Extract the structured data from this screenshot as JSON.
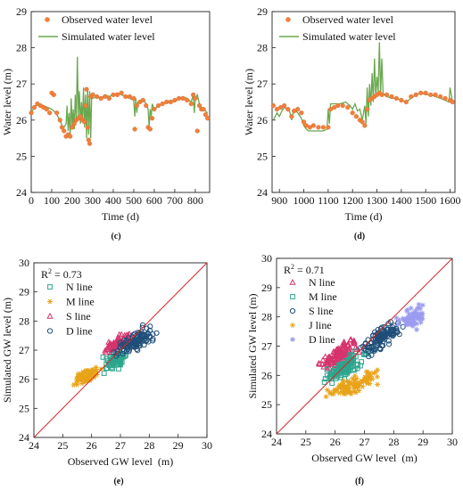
{
  "chart_data": [
    {
      "type": "line",
      "panel_label": "(c)",
      "xlabel": "Time (d)",
      "ylabel": "Water level (m)",
      "xlim": [
        0,
        870
      ],
      "ylim": [
        24,
        29
      ],
      "x_ticks": [
        0,
        100,
        200,
        300,
        400,
        500,
        600,
        700,
        800
      ],
      "y_ticks": [
        24,
        25,
        26,
        27,
        28,
        29
      ],
      "grid": false,
      "legend_position": "top-left",
      "series": [
        {
          "name": "Observed water level",
          "style": "markers",
          "color": "#f07f3c",
          "x": [
            0,
            15,
            30,
            45,
            60,
            75,
            90,
            100,
            110,
            125,
            140,
            150,
            160,
            170,
            180,
            190,
            200,
            210,
            220,
            230,
            240,
            250,
            260,
            265,
            270,
            275,
            280,
            285,
            290,
            300,
            320,
            340,
            360,
            380,
            400,
            420,
            440,
            460,
            480,
            500,
            505,
            515,
            530,
            545,
            560,
            570,
            580,
            590,
            600,
            620,
            640,
            660,
            680,
            700,
            720,
            740,
            760,
            780,
            790,
            800,
            810,
            820,
            830,
            840,
            850,
            860
          ],
          "y": [
            26.2,
            26.35,
            26.45,
            26.4,
            26.35,
            26.3,
            26.2,
            26.75,
            26.7,
            26.2,
            26.0,
            25.8,
            25.7,
            25.55,
            25.6,
            25.55,
            25.8,
            25.9,
            26.0,
            26.05,
            26.1,
            26.0,
            25.95,
            26.4,
            26.85,
            25.8,
            25.45,
            25.35,
            26.65,
            26.7,
            26.65,
            26.6,
            26.65,
            26.6,
            26.7,
            26.7,
            26.75,
            26.65,
            26.65,
            26.6,
            25.75,
            26.4,
            26.5,
            26.55,
            26.4,
            25.8,
            25.75,
            26.05,
            26.3,
            26.4,
            26.45,
            26.5,
            26.5,
            26.55,
            26.6,
            26.6,
            26.55,
            26.45,
            26.7,
            26.6,
            25.7,
            26.4,
            26.3,
            26.3,
            26.15,
            26.05
          ]
        },
        {
          "name": "Simulated water level",
          "style": "line",
          "color": "#6aa84f",
          "x": [
            0,
            20,
            40,
            60,
            80,
            100,
            110,
            120,
            130,
            140,
            150,
            160,
            170,
            175,
            180,
            185,
            190,
            195,
            200,
            205,
            210,
            215,
            220,
            225,
            230,
            235,
            240,
            245,
            250,
            255,
            260,
            265,
            270,
            275,
            280,
            285,
            290,
            295,
            300,
            320,
            340,
            360,
            380,
            400,
            420,
            440,
            460,
            480,
            500,
            505,
            510,
            515,
            520,
            530,
            540,
            550,
            560,
            570,
            575,
            580,
            585,
            590,
            600,
            620,
            640,
            660,
            680,
            700,
            720,
            740,
            760,
            780,
            790,
            795,
            800,
            810,
            820,
            830,
            840,
            850,
            860
          ],
          "y": [
            26.2,
            26.4,
            26.45,
            26.4,
            26.35,
            26.3,
            26.25,
            26.2,
            26.1,
            26.0,
            25.85,
            25.8,
            25.9,
            26.4,
            25.7,
            26.2,
            25.6,
            26.6,
            25.8,
            26.3,
            25.75,
            26.7,
            26.0,
            27.75,
            26.1,
            26.8,
            25.9,
            26.5,
            25.95,
            26.9,
            25.8,
            26.7,
            25.5,
            26.9,
            25.6,
            26.8,
            25.5,
            26.7,
            26.6,
            26.65,
            26.6,
            26.7,
            26.65,
            26.7,
            26.75,
            26.7,
            26.65,
            26.6,
            26.55,
            26.1,
            26.6,
            26.2,
            26.5,
            26.55,
            26.5,
            26.55,
            26.45,
            26.3,
            25.8,
            26.3,
            26.1,
            26.45,
            26.3,
            26.4,
            26.45,
            26.5,
            26.55,
            26.5,
            26.6,
            26.65,
            26.6,
            26.5,
            26.7,
            26.2,
            26.6,
            26.7,
            26.45,
            26.35,
            26.3,
            26.25,
            26.2
          ]
        }
      ]
    },
    {
      "type": "line",
      "panel_label": "(d)",
      "xlabel": "Time (d)",
      "ylabel": "Water level (m)",
      "xlim": [
        870,
        1620
      ],
      "ylim": [
        24,
        29
      ],
      "x_ticks": [
        900,
        1000,
        1100,
        1200,
        1300,
        1400,
        1500,
        1600
      ],
      "y_ticks": [
        24,
        25,
        26,
        27,
        28,
        29
      ],
      "grid": false,
      "legend_position": "top-left",
      "series": [
        {
          "name": "Observed water level",
          "style": "markers",
          "color": "#f07f3c",
          "x": [
            875,
            890,
            905,
            920,
            935,
            950,
            960,
            975,
            990,
            1000,
            1010,
            1025,
            1040,
            1060,
            1080,
            1100,
            1110,
            1125,
            1140,
            1160,
            1180,
            1200,
            1215,
            1230,
            1240,
            1250,
            1260,
            1270,
            1280,
            1290,
            1300,
            1310,
            1320,
            1340,
            1360,
            1380,
            1400,
            1420,
            1440,
            1460,
            1480,
            1500,
            1520,
            1540,
            1560,
            1580,
            1600,
            1610
          ],
          "y": [
            26.4,
            26.3,
            26.35,
            26.4,
            26.3,
            26.1,
            26.25,
            26.3,
            26.2,
            25.95,
            25.85,
            25.8,
            25.85,
            25.8,
            25.8,
            25.8,
            26.3,
            26.35,
            26.4,
            26.4,
            26.35,
            26.2,
            26.1,
            26.0,
            25.95,
            25.85,
            26.3,
            26.55,
            26.6,
            26.65,
            26.7,
            26.75,
            26.7,
            26.7,
            26.65,
            26.6,
            26.55,
            26.5,
            26.65,
            26.7,
            26.75,
            26.75,
            26.7,
            26.7,
            26.65,
            26.6,
            26.55,
            26.5
          ]
        },
        {
          "name": "Simulated water level",
          "style": "line",
          "color": "#6aa84f",
          "x": [
            875,
            890,
            900,
            910,
            920,
            940,
            950,
            960,
            975,
            990,
            1000,
            1010,
            1020,
            1040,
            1060,
            1080,
            1095,
            1100,
            1105,
            1110,
            1130,
            1150,
            1170,
            1190,
            1200,
            1210,
            1220,
            1230,
            1240,
            1250,
            1255,
            1260,
            1265,
            1270,
            1275,
            1280,
            1285,
            1290,
            1295,
            1300,
            1305,
            1310,
            1315,
            1320,
            1325,
            1330,
            1340,
            1360,
            1380,
            1400,
            1420,
            1440,
            1460,
            1480,
            1500,
            1520,
            1540,
            1560,
            1580,
            1595,
            1600,
            1610
          ],
          "y": [
            26.0,
            26.2,
            26.1,
            26.25,
            26.35,
            26.3,
            26.0,
            26.3,
            26.2,
            26.05,
            25.85,
            25.75,
            25.7,
            25.7,
            25.7,
            25.7,
            25.75,
            26.3,
            25.9,
            26.45,
            26.45,
            26.45,
            26.5,
            26.4,
            26.3,
            26.45,
            26.25,
            26.3,
            26.0,
            26.4,
            25.9,
            26.9,
            26.1,
            27.0,
            26.4,
            27.3,
            26.5,
            27.7,
            26.6,
            27.2,
            26.8,
            28.15,
            26.7,
            27.7,
            26.75,
            26.7,
            26.65,
            26.6,
            26.6,
            26.55,
            26.5,
            26.6,
            26.7,
            26.75,
            26.7,
            26.7,
            26.65,
            26.6,
            26.55,
            26.5,
            26.9,
            26.5
          ]
        }
      ]
    },
    {
      "type": "scatter",
      "panel_label": "(e)",
      "xlabel": "Observed GW level",
      "xlabel_unit": "(m)",
      "ylabel": "Simulated GW level (m)",
      "xlim": [
        24,
        30
      ],
      "ylim": [
        24,
        30
      ],
      "x_ticks": [
        24,
        25,
        26,
        27,
        28,
        29,
        30
      ],
      "y_ticks": [
        24,
        25,
        26,
        27,
        28,
        29,
        30
      ],
      "annotation": "R",
      "annotation_sup": "2",
      "annotation_value": " = 0.73",
      "reference_line": {
        "from": [
          24,
          24
        ],
        "to": [
          30,
          30
        ],
        "color": "#d62728"
      },
      "legend_position": "top-left",
      "series": [
        {
          "name": "N line",
          "marker": "square",
          "color": "#2ca58d",
          "center": [
            26.8,
            26.7
          ],
          "spread": [
            0.55,
            0.45
          ],
          "slope": 0.55,
          "count": 70
        },
        {
          "name": "M line",
          "marker": "asterisk",
          "color": "#e8a317",
          "center": [
            25.8,
            26.1
          ],
          "spread": [
            0.6,
            0.3
          ],
          "slope": 0.4,
          "count": 80
        },
        {
          "name": "S line",
          "marker": "triangle",
          "color": "#d6336c",
          "center": [
            26.9,
            27.2
          ],
          "spread": [
            0.6,
            0.35
          ],
          "slope": 0.5,
          "count": 60
        },
        {
          "name": "D line",
          "marker": "circle",
          "color": "#1f4e79",
          "center": [
            27.5,
            27.3
          ],
          "spread": [
            0.9,
            0.5
          ],
          "slope": 0.55,
          "count": 110
        }
      ]
    },
    {
      "type": "scatter",
      "panel_label": "(f)",
      "xlabel": "Observed GW level",
      "xlabel_unit": "(m)",
      "ylabel": "Simulated GW level (m)",
      "xlim": [
        24,
        30
      ],
      "ylim": [
        24,
        30
      ],
      "x_ticks": [
        24,
        25,
        26,
        27,
        28,
        29,
        30
      ],
      "y_ticks": [
        24,
        25,
        26,
        27,
        28,
        29,
        30
      ],
      "annotation": "R",
      "annotation_sup": "2",
      "annotation_value": " = 0.71",
      "reference_line": {
        "from": [
          24,
          24
        ],
        "to": [
          30,
          30
        ],
        "color": "#d62728"
      },
      "legend_position": "top-left",
      "series": [
        {
          "name": "N line",
          "marker": "triangle",
          "color": "#d6336c",
          "center": [
            26.2,
            26.7
          ],
          "spread": [
            0.9,
            0.6
          ],
          "slope": 0.6,
          "count": 110
        },
        {
          "name": "M line",
          "marker": "square",
          "color": "#2ca58d",
          "center": [
            26.4,
            26.3
          ],
          "spread": [
            1.0,
            0.5
          ],
          "slope": 0.55,
          "count": 110
        },
        {
          "name": "S line",
          "marker": "circle",
          "color": "#1f4e79",
          "center": [
            27.6,
            27.3
          ],
          "spread": [
            1.0,
            0.5
          ],
          "slope": 0.55,
          "count": 120
        },
        {
          "name": "J line",
          "marker": "asterisk",
          "color": "#e8a317",
          "center": [
            26.6,
            25.7
          ],
          "spread": [
            1.2,
            0.45
          ],
          "slope": 0.4,
          "count": 100
        },
        {
          "name": "D line",
          "marker": "star",
          "color": "#9b9bf0",
          "center": [
            28.6,
            27.9
          ],
          "spread": [
            0.7,
            0.5
          ],
          "slope": 0.6,
          "count": 60
        }
      ]
    }
  ]
}
